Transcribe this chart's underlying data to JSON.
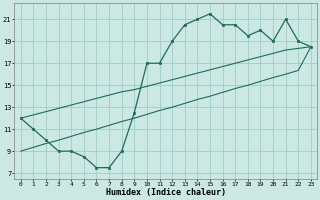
{
  "background_color": "#cce8e2",
  "grid_color": "#a0ccc4",
  "line_color": "#1e6b5c",
  "xlabel": "Humidex (Indice chaleur)",
  "xlim": [
    -0.5,
    23.5
  ],
  "ylim": [
    6.5,
    22.5
  ],
  "yticks": [
    7,
    9,
    11,
    13,
    15,
    17,
    19,
    21
  ],
  "xticks": [
    0,
    1,
    2,
    3,
    4,
    5,
    6,
    7,
    8,
    9,
    10,
    11,
    12,
    13,
    14,
    15,
    16,
    17,
    18,
    19,
    20,
    21,
    22,
    23
  ],
  "y_main": [
    12,
    11,
    10,
    9,
    9,
    8.5,
    7.5,
    7.5,
    9,
    12.5,
    17,
    17,
    19,
    20.5,
    21,
    21.5,
    20.5,
    20.5,
    19.5,
    20,
    19,
    21,
    19,
    18.5
  ],
  "y_diag1": [
    9,
    9.35,
    9.7,
    10.0,
    10.35,
    10.7,
    11.0,
    11.35,
    11.7,
    12.0,
    12.35,
    12.7,
    13.0,
    13.35,
    13.7,
    14.0,
    14.35,
    14.7,
    15.0,
    15.35,
    15.7,
    16.0,
    16.35,
    18.5
  ],
  "y_diag2": [
    12,
    12.3,
    12.6,
    12.9,
    13.2,
    13.5,
    13.8,
    14.1,
    14.4,
    14.6,
    14.9,
    15.2,
    15.5,
    15.8,
    16.1,
    16.4,
    16.7,
    17.0,
    17.3,
    17.6,
    17.9,
    18.2,
    18.35,
    18.5
  ]
}
